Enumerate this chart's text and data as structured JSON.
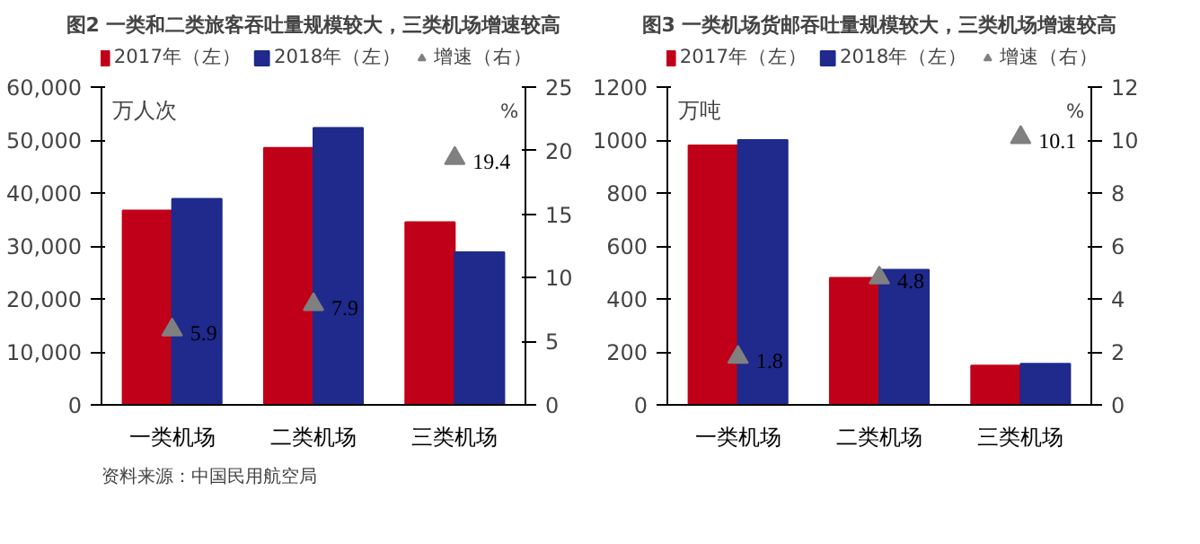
{
  "chart_data": [
    {
      "type": "bar",
      "title": "图2 一类和二类旅客吞吐量规模较大，三类机场增速较高",
      "ylabel": "万人次",
      "y2label": "%",
      "categories": [
        "一类机场",
        "二类机场",
        "三类机场"
      ],
      "series": [
        {
          "name": "2017年（左）",
          "color": "#c00018",
          "values": [
            36700,
            48500,
            34500
          ]
        },
        {
          "name": "2018年（左）",
          "color": "#1f2a8c",
          "values": [
            38900,
            52300,
            28800
          ]
        },
        {
          "name": "增速（右）",
          "type": "scatter",
          "axis": "y2",
          "marker": "triangle",
          "color": "#808080",
          "values": [
            5.9,
            7.9,
            19.4
          ],
          "value_labels": [
            "5.9",
            "7.9",
            "19.4"
          ]
        }
      ],
      "ylim": [
        0,
        60000
      ],
      "yticks": [
        {
          "value": 0,
          "label": "0"
        },
        {
          "value": 10000,
          "label": "10,000"
        },
        {
          "value": 20000,
          "label": "20,000"
        },
        {
          "value": 30000,
          "label": "30,000"
        },
        {
          "value": 40000,
          "label": "40,000"
        },
        {
          "value": 50000,
          "label": "50,000"
        },
        {
          "value": 60000,
          "label": "60,000"
        }
      ],
      "y2lim": [
        0,
        25
      ],
      "y2ticks": [
        0,
        5,
        10,
        15,
        20,
        25
      ],
      "legend": "top",
      "grid": false,
      "annotations": [
        "资料来源：中国民用航空局"
      ]
    },
    {
      "type": "bar",
      "title": "图3 一类机场货邮吞吐量规模较大，三类机场增速较高",
      "ylabel": "万吨",
      "y2label": "%",
      "categories": [
        "一类机场",
        "二类机场",
        "三类机场"
      ],
      "series": [
        {
          "name": "2017年（左）",
          "color": "#c00018",
          "values": [
            980,
            480,
            148
          ]
        },
        {
          "name": "2018年（左）",
          "color": "#1f2a8c",
          "values": [
            1000,
            510,
            155
          ]
        },
        {
          "name": "增速（右）",
          "type": "scatter",
          "axis": "y2",
          "marker": "triangle",
          "color": "#808080",
          "values": [
            1.8,
            4.8,
            10.1
          ],
          "value_labels": [
            "1.8",
            "4.8",
            "10.1"
          ]
        }
      ],
      "ylim": [
        0,
        1200
      ],
      "yticks": [
        0,
        200,
        400,
        600,
        800,
        1000,
        1200
      ],
      "y2lim": [
        0,
        12
      ],
      "y2ticks": [
        0,
        2,
        4,
        6,
        8,
        10,
        12
      ],
      "legend": "top",
      "grid": false
    }
  ]
}
